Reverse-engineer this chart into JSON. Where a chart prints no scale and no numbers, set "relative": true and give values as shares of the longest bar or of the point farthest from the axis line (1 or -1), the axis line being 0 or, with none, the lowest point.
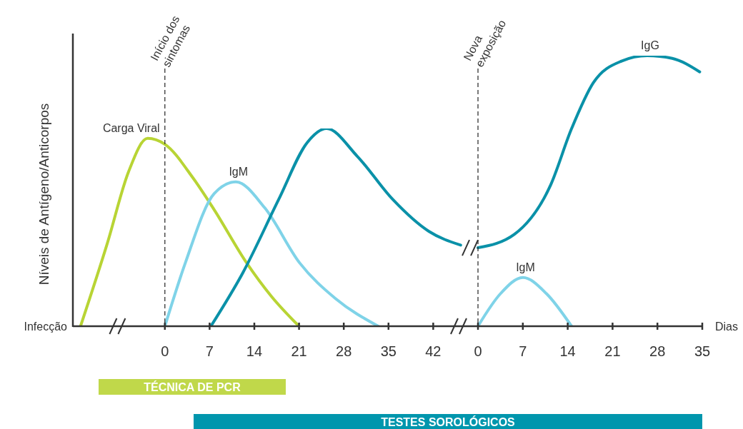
{
  "chart_data": [
    {
      "type": "line",
      "relative": true,
      "ylabel": "Níveis de Antígeno/Anticorpos",
      "xlim": [
        -14.4,
        47.1
      ],
      "xticks": [
        0,
        7,
        14,
        21,
        28,
        35,
        42
      ],
      "series": [
        {
          "name": "Carga Viral",
          "color": "#b8d434",
          "x": [
            -13.2,
            -9,
            -5.7,
            -2.7,
            0,
            4.4,
            7.7,
            12.8,
            16.7,
            21
          ],
          "values": [
            0,
            0.42,
            0.78,
            0.95,
            0.92,
            0.75,
            0.59,
            0.32,
            0.15,
            0
          ]
        },
        {
          "name": "IgM",
          "color": "#7fd3e8",
          "x": [
            0,
            3.2,
            7.7,
            11.1,
            15.6,
            21.1,
            26.7,
            33.4
          ],
          "values": [
            0,
            0.32,
            0.67,
            0.73,
            0.6,
            0.32,
            0.14,
            0
          ]
        },
        {
          "color": "#0a91a8",
          "x": [
            7.2,
            12.2,
            17.8,
            22.3,
            25.3,
            30.1,
            35.7,
            41.3,
            46.3
          ],
          "values": [
            0,
            0.27,
            0.64,
            0.93,
            1,
            0.86,
            0.64,
            0.48,
            0.41
          ]
        }
      ],
      "line_style": "solid",
      "marker": "none",
      "grid": false,
      "legend": false,
      "ref_lines": [
        {
          "axis": "x",
          "value": 0,
          "label": "Início dos sintomas",
          "line_style": "dashed",
          "color": "#333333"
        }
      ],
      "annotations": [
        "Infecção",
        "TÉCNICA DE PCR",
        "TESTES SOROLÓGICOS"
      ]
    },
    {
      "type": "line",
      "relative": true,
      "xlabel": "Dias",
      "xlim": [
        -1.9,
        35
      ],
      "xticks": [
        0,
        7,
        14,
        21,
        28,
        35
      ],
      "tick_labels": "x",
      "series": [
        {
          "name": "IgG",
          "color": "#0a91a8",
          "x": [
            0,
            5.7,
            11.3,
            14.6,
            18,
            22.4,
            26.4,
            30.3,
            34.6
          ],
          "values": [
            0.29,
            0.34,
            0.52,
            0.73,
            0.9,
            0.98,
            1,
            0.99,
            0.94
          ]
        },
        {
          "name": "IgM",
          "color": "#7fd3e8",
          "x": [
            0,
            3.5,
            7,
            10.7,
            14.6
          ],
          "values": [
            0,
            0.12,
            0.18,
            0.12,
            0
          ]
        }
      ],
      "line_style": "solid",
      "marker": "none",
      "grid": false,
      "legend": false,
      "ref_lines": [
        {
          "axis": "x",
          "value": 0,
          "label": "Nova exposição",
          "line_style": "dashed",
          "color": "#333333"
        }
      ]
    }
  ]
}
